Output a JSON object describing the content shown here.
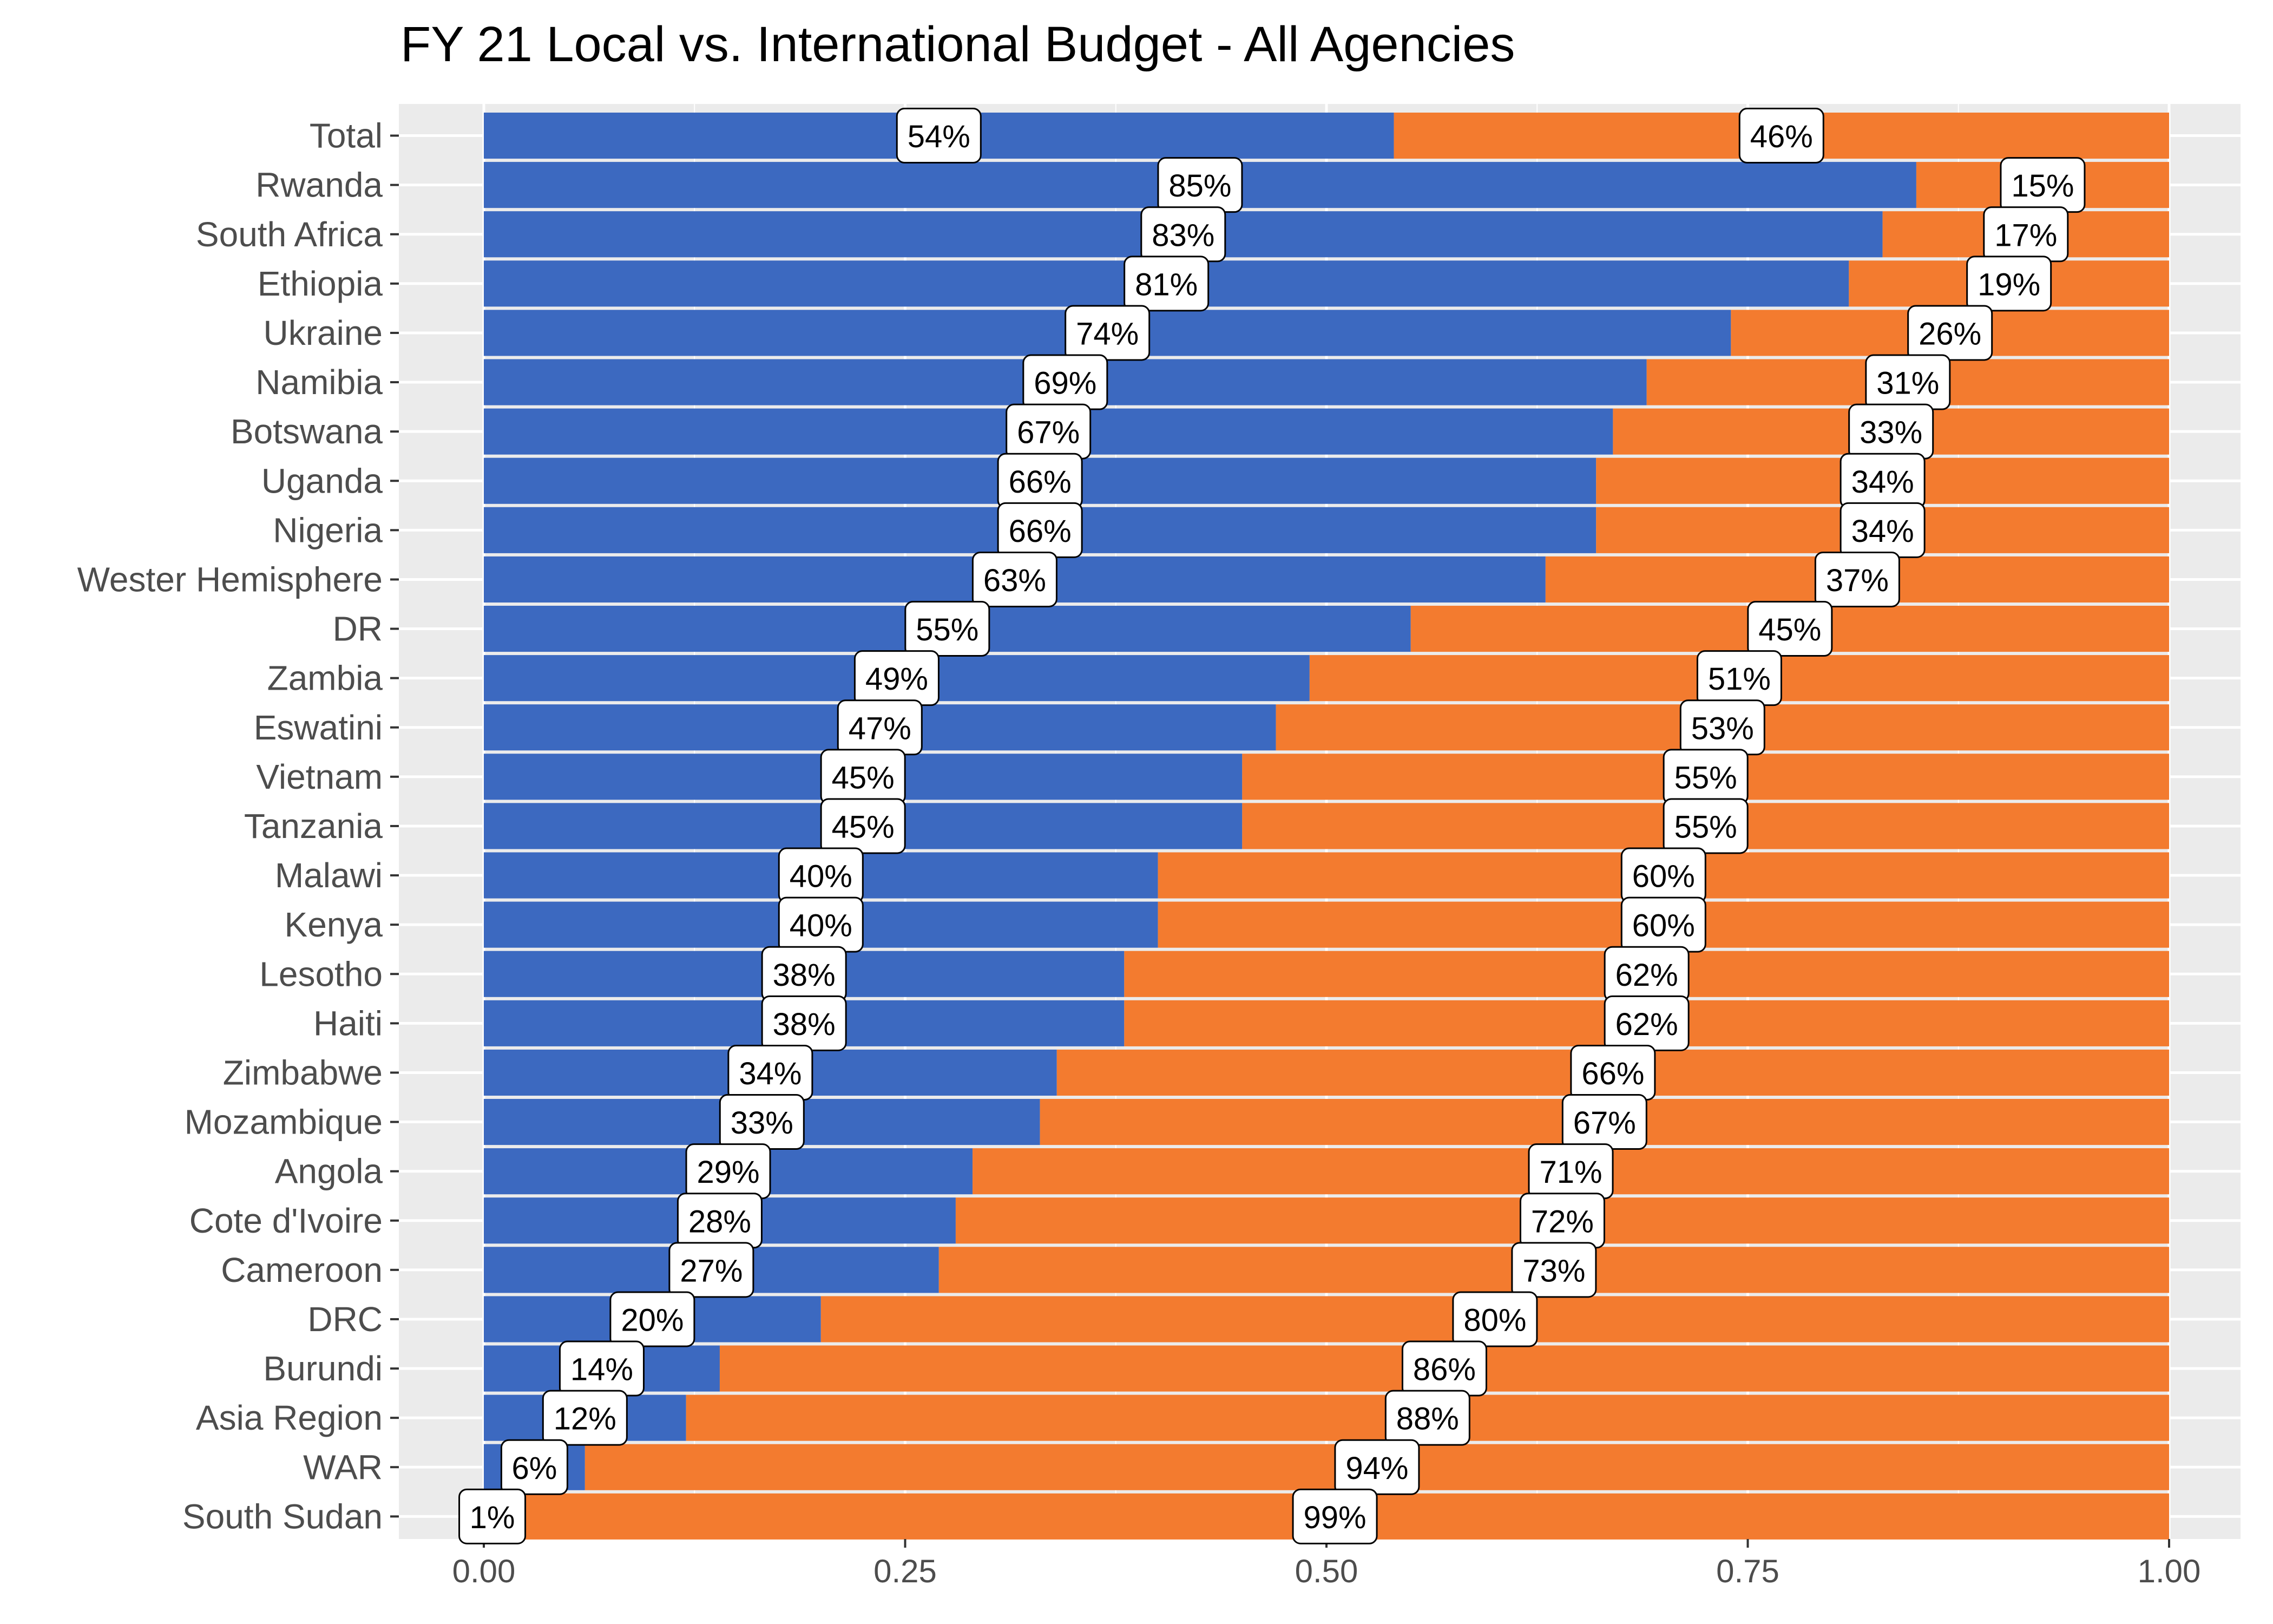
{
  "chart_data": {
    "type": "bar",
    "orientation": "horizontal",
    "stacked": true,
    "title": "FY 21 Local vs. International Budget - All Agencies",
    "xlabel": "",
    "ylabel": "",
    "xlim": [
      0,
      1
    ],
    "x_ticks": [
      0,
      0.25,
      0.5,
      0.75,
      1
    ],
    "x_tick_labels": [
      "0.00",
      "0.25",
      "0.50",
      "0.75",
      "1.00"
    ],
    "grid": true,
    "legend": "none",
    "categories": [
      "Total",
      "Rwanda",
      "South Africa",
      "Ethiopia",
      "Ukraine",
      "Namibia",
      "Botswana",
      "Uganda",
      "Nigeria",
      "Wester Hemisphere",
      "DR",
      "Zambia",
      "Eswatini",
      "Vietnam",
      "Tanzania",
      "Malawi",
      "Kenya",
      "Lesotho",
      "Haiti",
      "Zimbabwe",
      "Mozambique",
      "Angola",
      "Cote d'Ivoire",
      "Cameroon",
      "DRC",
      "Burundi",
      "Asia Region",
      "WAR",
      "South Sudan"
    ],
    "series": [
      {
        "color": "#3c69c0",
        "values": [
          0.54,
          0.85,
          0.83,
          0.81,
          0.74,
          0.69,
          0.67,
          0.66,
          0.66,
          0.63,
          0.55,
          0.49,
          0.47,
          0.45,
          0.45,
          0.4,
          0.4,
          0.38,
          0.38,
          0.34,
          0.33,
          0.29,
          0.28,
          0.27,
          0.2,
          0.14,
          0.12,
          0.06,
          0.01
        ],
        "labels": [
          "54%",
          "85%",
          "83%",
          "81%",
          "74%",
          "69%",
          "67%",
          "66%",
          "66%",
          "63%",
          "55%",
          "49%",
          "47%",
          "45%",
          "45%",
          "40%",
          "40%",
          "38%",
          "38%",
          "34%",
          "33%",
          "29%",
          "28%",
          "27%",
          "20%",
          "14%",
          "12%",
          "6%",
          "1%"
        ]
      },
      {
        "color": "#f37b2f",
        "values": [
          0.46,
          0.15,
          0.17,
          0.19,
          0.26,
          0.31,
          0.33,
          0.34,
          0.34,
          0.37,
          0.45,
          0.51,
          0.53,
          0.55,
          0.55,
          0.6,
          0.6,
          0.62,
          0.62,
          0.66,
          0.67,
          0.71,
          0.72,
          0.73,
          0.8,
          0.86,
          0.88,
          0.94,
          0.99
        ],
        "labels": [
          "46%",
          "15%",
          "17%",
          "19%",
          "26%",
          "31%",
          "33%",
          "34%",
          "34%",
          "37%",
          "45%",
          "51%",
          "53%",
          "55%",
          "55%",
          "60%",
          "60%",
          "62%",
          "62%",
          "66%",
          "67%",
          "71%",
          "72%",
          "73%",
          "80%",
          "86%",
          "88%",
          "94%",
          "99%"
        ]
      }
    ],
    "panel_color": "#ebebeb",
    "grid_color": "#ffffff"
  }
}
